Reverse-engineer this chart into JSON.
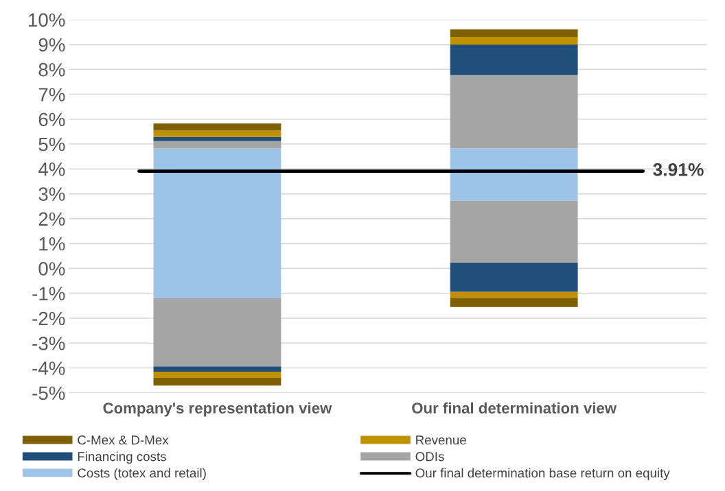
{
  "chart_data": {
    "type": "bar",
    "categories": [
      "Company's representation view",
      "Our final determination view"
    ],
    "series": [
      {
        "color": "#7f6000",
        "base": [
          -4.71,
          -1.55
        ],
        "values": [
          0.31,
          0.37
        ]
      },
      {
        "color": "#bf9000",
        "base": [
          -4.4,
          -1.18
        ],
        "values": [
          0.25,
          0.24
        ]
      },
      {
        "color": "#1f4e79",
        "base": [
          -4.15,
          -0.94
        ],
        "values": [
          0.21,
          1.18
        ]
      },
      {
        "color": "#a5a5a5",
        "base": [
          -3.94,
          0.24
        ],
        "values": [
          2.75,
          2.49
        ]
      },
      {
        "name": "Costs (totex and retail)",
        "color": "#9dc3e6",
        "base": [
          -1.19,
          2.73
        ],
        "values": [
          6.01,
          2.1
        ]
      },
      {
        "name": "ODIs",
        "color": "#a5a5a5",
        "base": [
          4.82,
          4.83
        ],
        "values": [
          0.3,
          2.95
        ]
      },
      {
        "name": "Financing costs",
        "color": "#1f4e79",
        "base": [
          5.12,
          7.78
        ],
        "values": [
          0.16,
          1.22
        ]
      },
      {
        "name": "Revenue",
        "color": "#bf9000",
        "base": [
          5.28,
          9.0
        ],
        "values": [
          0.26,
          0.3
        ]
      },
      {
        "name": "C-Mex & D-Mex",
        "color": "#7f6000",
        "base": [
          5.54,
          9.3
        ],
        "values": [
          0.29,
          0.31
        ]
      }
    ],
    "ylim": [
      -5,
      10
    ],
    "yticks": [
      {
        "value": -5,
        "label": "-5%"
      },
      {
        "value": -4,
        "label": "-4%"
      },
      {
        "value": -3,
        "label": "-3%"
      },
      {
        "value": -2,
        "label": "-2%"
      },
      {
        "value": -1,
        "label": "-1%"
      },
      {
        "value": 0,
        "label": "0%"
      },
      {
        "value": 1,
        "label": "1%"
      },
      {
        "value": 2,
        "label": "2%"
      },
      {
        "value": 3,
        "label": "3%"
      },
      {
        "value": 4,
        "label": "4%"
      },
      {
        "value": 5,
        "label": "5%"
      },
      {
        "value": 6,
        "label": "6%"
      },
      {
        "value": 7,
        "label": "7%"
      },
      {
        "value": 8,
        "label": "8%"
      },
      {
        "value": 9,
        "label": "9%"
      },
      {
        "value": 10,
        "label": "10%"
      }
    ],
    "ref_lines": [
      {
        "axis": "y",
        "value": 3.91,
        "label": "Our final determination base return on equity",
        "color": "#000000"
      }
    ],
    "annotations": [
      "3.91%"
    ],
    "grid": "y",
    "legend": "bottom"
  }
}
